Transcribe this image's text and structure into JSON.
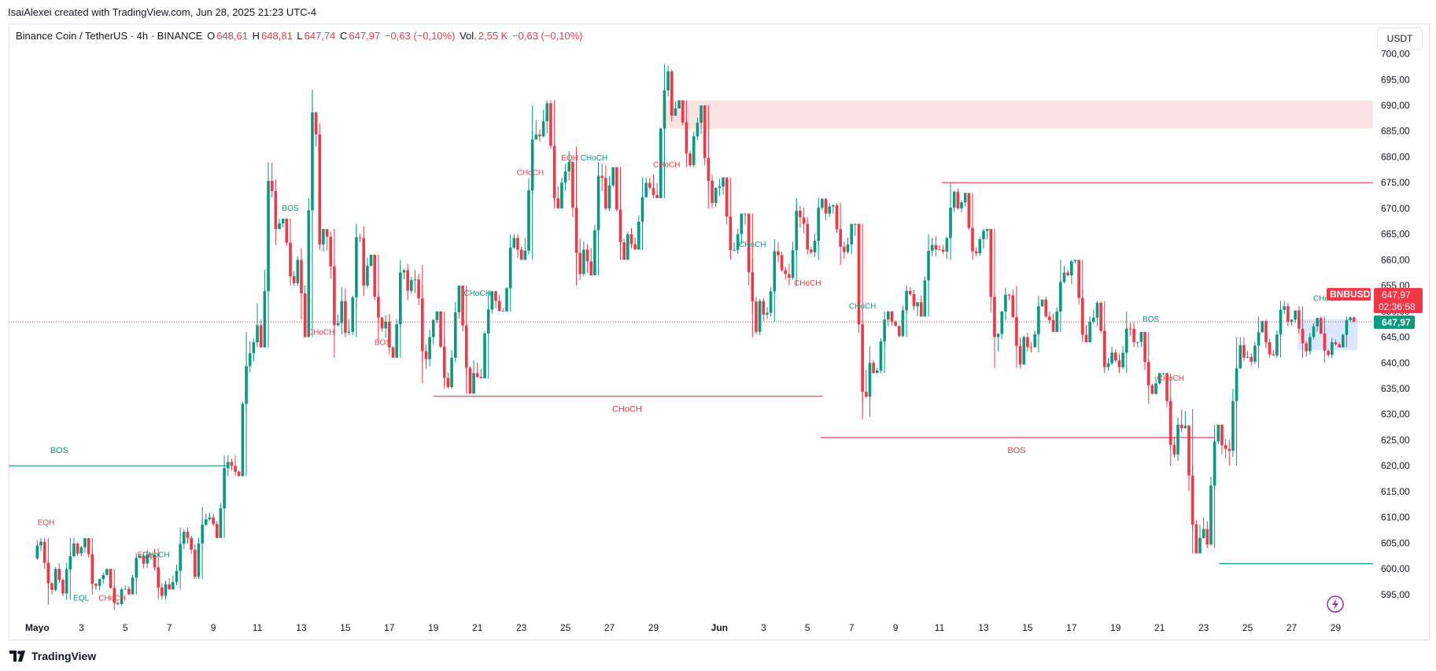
{
  "header": {
    "credit": "IsaiAlexei created with TradingView.com, Jun 28, 2025 21:23 UTC-4",
    "symbol": "Binance Coin / TetherUS · 4h · BINANCE",
    "o_label": "O",
    "o_value": "648,61",
    "h_label": "H",
    "h_value": "648,81",
    "l_label": "L",
    "l_value": "647,74",
    "c_label": "C",
    "c_value": "647,97",
    "change": "−0,63 (−0,10%)",
    "vol_label": "Vol.",
    "vol_value": "2,55 K",
    "vol_change": "−0,63 (−0,10%)",
    "currency": "USDT"
  },
  "price_tags": {
    "symbol": "BNBUSDT",
    "price": "647,97",
    "countdown": "02:36:58",
    "price2": "647,97"
  },
  "brand": "TradingView",
  "colors": {
    "up": "#089981",
    "down": "#f23645",
    "supply_zone": "#fde2e4",
    "demand_zone": "#dbe7ff"
  },
  "chart_data": {
    "type": "candlestick",
    "symbol": "BNBUSDT",
    "interval": "4h",
    "ylim": [
      591,
      701
    ],
    "y_ticks": [
      595,
      600,
      605,
      610,
      615,
      620,
      625,
      630,
      635,
      640,
      645,
      650,
      655,
      660,
      665,
      670,
      675,
      680,
      685,
      690,
      695,
      700
    ],
    "y_tick_labels": [
      "595,00",
      "600,00",
      "605,00",
      "610,00",
      "615,00",
      "620,00",
      "625,00",
      "630,00",
      "635,00",
      "640,00",
      "645,00",
      "650,00",
      "655,00",
      "660,00",
      "665,00",
      "670,00",
      "675,00",
      "680,00",
      "685,00",
      "690,00",
      "695,00",
      "700,00"
    ],
    "x_ticks": [
      "Mayo",
      "3",
      "5",
      "7",
      "9",
      "11",
      "13",
      "15",
      "17",
      "19",
      "21",
      "23",
      "25",
      "27",
      "29",
      "Jun",
      "3",
      "5",
      "7",
      "9",
      "11",
      "13",
      "15",
      "17",
      "19",
      "21",
      "23",
      "25",
      "27",
      "29"
    ],
    "x_tick_index": [
      0,
      2,
      4,
      6,
      8,
      10,
      12,
      14,
      16,
      18,
      20,
      22,
      24,
      26,
      28,
      31,
      33,
      35,
      37,
      39,
      41,
      43,
      45,
      47,
      49,
      51,
      53,
      55,
      57,
      59
    ],
    "x_range_days": [
      -1.3,
      60.7
    ],
    "current_price": 647.97,
    "daily": [
      {
        "o": 602,
        "h": 606,
        "l": 593,
        "c": 600
      },
      {
        "o": 600,
        "h": 606,
        "l": 594,
        "c": 603
      },
      {
        "o": 603,
        "h": 606,
        "l": 595,
        "c": 598
      },
      {
        "o": 598,
        "h": 600,
        "l": 592,
        "c": 596
      },
      {
        "o": 596,
        "h": 603,
        "l": 595,
        "c": 601
      },
      {
        "o": 601,
        "h": 604,
        "l": 594,
        "c": 597
      },
      {
        "o": 597,
        "h": 608,
        "l": 596,
        "c": 606
      },
      {
        "o": 606,
        "h": 612,
        "l": 598,
        "c": 610
      },
      {
        "o": 610,
        "h": 622,
        "l": 606,
        "c": 620
      },
      {
        "o": 620,
        "h": 646,
        "l": 618,
        "c": 644
      },
      {
        "o": 644,
        "h": 679,
        "l": 643,
        "c": 666
      },
      {
        "o": 666,
        "h": 668,
        "l": 655,
        "c": 660
      },
      {
        "o": 660,
        "h": 693,
        "l": 645,
        "c": 663
      },
      {
        "o": 663,
        "h": 666,
        "l": 641,
        "c": 652
      },
      {
        "o": 652,
        "h": 667,
        "l": 645,
        "c": 655
      },
      {
        "o": 655,
        "h": 661,
        "l": 644,
        "c": 648
      },
      {
        "o": 648,
        "h": 660,
        "l": 641,
        "c": 654
      },
      {
        "o": 654,
        "h": 659,
        "l": 636,
        "c": 645
      },
      {
        "o": 645,
        "h": 650,
        "l": 635,
        "c": 641
      },
      {
        "o": 641,
        "h": 655,
        "l": 634,
        "c": 638
      },
      {
        "o": 638,
        "h": 654,
        "l": 637,
        "c": 652
      },
      {
        "o": 652,
        "h": 665,
        "l": 650,
        "c": 662
      },
      {
        "o": 662,
        "h": 690,
        "l": 660,
        "c": 684
      },
      {
        "o": 684,
        "h": 691,
        "l": 670,
        "c": 675
      },
      {
        "o": 675,
        "h": 682,
        "l": 655,
        "c": 662
      },
      {
        "o": 662,
        "h": 679,
        "l": 657,
        "c": 670
      },
      {
        "o": 670,
        "h": 678,
        "l": 660,
        "c": 665
      },
      {
        "o": 665,
        "h": 676,
        "l": 662,
        "c": 674
      },
      {
        "o": 674,
        "h": 698,
        "l": 672,
        "c": 688
      },
      {
        "o": 688,
        "h": 691,
        "l": 678,
        "c": 684
      },
      {
        "o": 684,
        "h": 690,
        "l": 670,
        "c": 674
      },
      {
        "o": 674,
        "h": 676,
        "l": 660,
        "c": 665
      },
      {
        "o": 665,
        "h": 669,
        "l": 645,
        "c": 652
      },
      {
        "o": 652,
        "h": 664,
        "l": 648,
        "c": 658
      },
      {
        "o": 658,
        "h": 672,
        "l": 655,
        "c": 667
      },
      {
        "o": 667,
        "h": 672,
        "l": 660,
        "c": 669
      },
      {
        "o": 669,
        "h": 671,
        "l": 659,
        "c": 663
      },
      {
        "o": 663,
        "h": 667,
        "l": 629,
        "c": 640
      },
      {
        "o": 640,
        "h": 650,
        "l": 638,
        "c": 648
      },
      {
        "o": 648,
        "h": 655,
        "l": 645,
        "c": 651
      },
      {
        "o": 651,
        "h": 665,
        "l": 649,
        "c": 662
      },
      {
        "o": 662,
        "h": 675,
        "l": 660,
        "c": 670
      },
      {
        "o": 670,
        "h": 673,
        "l": 660,
        "c": 664
      },
      {
        "o": 664,
        "h": 666,
        "l": 639,
        "c": 650
      },
      {
        "o": 650,
        "h": 655,
        "l": 639,
        "c": 645
      },
      {
        "o": 645,
        "h": 653,
        "l": 642,
        "c": 649
      },
      {
        "o": 649,
        "h": 660,
        "l": 646,
        "c": 657
      },
      {
        "o": 657,
        "h": 660,
        "l": 644,
        "c": 648
      },
      {
        "o": 648,
        "h": 652,
        "l": 638,
        "c": 642
      },
      {
        "o": 642,
        "h": 650,
        "l": 638,
        "c": 644
      },
      {
        "o": 644,
        "h": 646,
        "l": 632,
        "c": 636
      },
      {
        "o": 636,
        "h": 638,
        "l": 620,
        "c": 628
      },
      {
        "o": 628,
        "h": 631,
        "l": 603,
        "c": 606
      },
      {
        "o": 606,
        "h": 628,
        "l": 604,
        "c": 624
      },
      {
        "o": 624,
        "h": 645,
        "l": 620,
        "c": 641
      },
      {
        "o": 641,
        "h": 649,
        "l": 639,
        "c": 644
      },
      {
        "o": 644,
        "h": 652,
        "l": 641,
        "c": 648
      },
      {
        "o": 648,
        "h": 651,
        "l": 641,
        "c": 645
      },
      {
        "o": 645,
        "h": 649,
        "l": 640,
        "c": 644
      },
      {
        "o": 644,
        "h": 649,
        "l": 643,
        "c": 648
      }
    ],
    "zones": [
      {
        "name": "supply",
        "x0": 28.5,
        "x1": 60.7,
        "y0": 685.5,
        "y1": 691
      },
      {
        "name": "demand",
        "x0": 57.3,
        "x1": 60.0,
        "y0": 642.5,
        "y1": 648.5
      }
    ],
    "levels": [
      {
        "label": "BOS",
        "color": "#089981",
        "x0": -1.3,
        "x1": 8.6,
        "y": 620,
        "lx": 1.0,
        "ly": 622.5
      },
      {
        "label": "CHoCH",
        "color": "#f23645",
        "x0": 18.0,
        "x1": 35.7,
        "y": 633.5,
        "lx": 26.8,
        "ly": 630.5
      },
      {
        "label": "BOS",
        "color": "#f23645",
        "x0": 35.6,
        "x1": 53.5,
        "y": 625.5,
        "lx": 44.5,
        "ly": 622.5
      },
      {
        "label": "",
        "color": "#f23645",
        "x0": 41.1,
        "x1": 60.7,
        "y": 675,
        "lx": 0,
        "ly": 0
      },
      {
        "label": "",
        "color": "#089981",
        "x0": 53.7,
        "x1": 60.7,
        "y": 601,
        "lx": 0,
        "ly": 0
      }
    ],
    "annotations": [
      {
        "label": "BOS",
        "color": "#089981",
        "x": 11.5,
        "y": 669.5
      },
      {
        "label": "CHoCH",
        "color": "#f23645",
        "x": 12.9,
        "y": 645.5
      },
      {
        "label": "BOS",
        "color": "#f23645",
        "x": 15.7,
        "y": 643.5
      },
      {
        "label": "CHoCH",
        "color": "#089981",
        "x": 20.0,
        "y": 653.0
      },
      {
        "label": "CHoCH",
        "color": "#f23645",
        "x": 22.4,
        "y": 676.5
      },
      {
        "label": "EQH",
        "color": "#f23645",
        "x": 24.2,
        "y": 679.3
      },
      {
        "label": "CHoCH",
        "color": "#089981",
        "x": 25.3,
        "y": 679.3
      },
      {
        "label": "CHoCH",
        "color": "#f23645",
        "x": 28.6,
        "y": 678.0
      },
      {
        "label": "CHoCH",
        "color": "#089981",
        "x": 32.5,
        "y": 662.5
      },
      {
        "label": "CHoCH",
        "color": "#f23645",
        "x": 35.0,
        "y": 655.0
      },
      {
        "label": "CHoCH",
        "color": "#089981",
        "x": 37.5,
        "y": 650.5
      },
      {
        "label": "BOS",
        "color": "#089981",
        "x": 50.6,
        "y": 648.0
      },
      {
        "label": "CHoCH",
        "color": "#f23645",
        "x": 51.5,
        "y": 636.5
      },
      {
        "label": "CHoCH",
        "color": "#089981",
        "x": 58.6,
        "y": 652.0
      },
      {
        "label": "EQH",
        "color": "#f23645",
        "x": 0.4,
        "y": 608.5
      },
      {
        "label": "EQL",
        "color": "#089981",
        "x": 2.0,
        "y": 593.8
      },
      {
        "label": "CHoCH",
        "color": "#f23645",
        "x": 3.4,
        "y": 593.8
      },
      {
        "label": "EQL",
        "color": "#f23645",
        "x": 4.9,
        "y": 602.2
      },
      {
        "label": "CHoCH",
        "color": "#089981",
        "x": 5.4,
        "y": 602.2
      }
    ]
  }
}
